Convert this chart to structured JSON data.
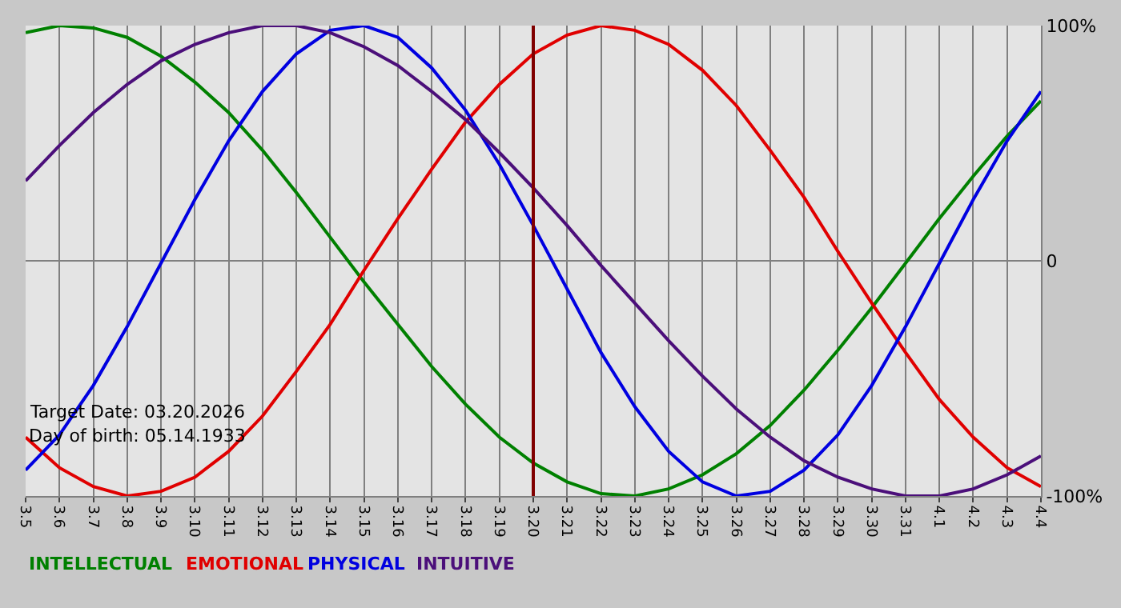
{
  "chart_data": {
    "type": "line",
    "categories": [
      "3.5",
      "3.6",
      "3.7",
      "3.8",
      "3.9",
      "3.10",
      "3.11",
      "3.12",
      "3.13",
      "3.14",
      "3.15",
      "3.16",
      "3.17",
      "3.18",
      "3.19",
      "3.20",
      "3.21",
      "3.22",
      "3.23",
      "3.24",
      "3.25",
      "3.26",
      "3.27",
      "3.28",
      "3.29",
      "3.30",
      "3.31",
      "4.1",
      "4.2",
      "4.3",
      "4.4"
    ],
    "series": [
      {
        "name": "INTELLECTUAL",
        "color": "#008000",
        "values": [
          97,
          100,
          99,
          95,
          87,
          76,
          63,
          47,
          29,
          10,
          -9,
          -27,
          -45,
          -61,
          -75,
          -86,
          -94,
          -99,
          -100,
          -97,
          -91,
          -82,
          -70,
          -55,
          -38,
          -20,
          -1,
          18,
          36,
          53,
          68
        ]
      },
      {
        "name": "EMOTIONAL",
        "color": "#e00000",
        "values": [
          -75,
          -88,
          -96,
          -100,
          -98,
          -92,
          -81,
          -66,
          -47,
          -27,
          -4,
          18,
          39,
          59,
          75,
          88,
          96,
          100,
          98,
          92,
          81,
          66,
          47,
          27,
          4,
          -18,
          -39,
          -59,
          -75,
          -88,
          -96
        ]
      },
      {
        "name": "PHYSICAL",
        "color": "#0000e0",
        "values": [
          -89,
          -74,
          -53,
          -28,
          -1,
          26,
          51,
          72,
          88,
          98,
          100,
          95,
          82,
          64,
          41,
          15,
          -12,
          -39,
          -62,
          -81,
          -94,
          -100,
          -98,
          -89,
          -74,
          -53,
          -28,
          -1,
          26,
          51,
          72
        ]
      },
      {
        "name": "INTUITIVE",
        "color": "#4b0f7a",
        "values": [
          34,
          49,
          63,
          75,
          85,
          92,
          97,
          100,
          100,
          97,
          91,
          83,
          72,
          60,
          46,
          31,
          15,
          -2,
          -18,
          -34,
          -49,
          -63,
          -75,
          -85,
          -92,
          -97,
          -100,
          -100,
          -97,
          -91,
          -83
        ]
      }
    ],
    "ylim": [
      -100,
      100
    ],
    "yticks": [
      {
        "value": 100,
        "label": "100%"
      },
      0,
      {
        "value": -100,
        "label": "-100%"
      }
    ],
    "grid": true,
    "ref_lines": [
      {
        "axis": "x",
        "value": "3.20",
        "color": "#800000"
      }
    ],
    "annotations": [
      "Target Date: 03.20.2026",
      "Day of birth: 05.14.1933"
    ]
  }
}
